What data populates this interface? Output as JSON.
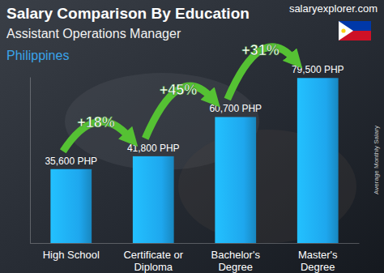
{
  "chart_data": {
    "type": "bar",
    "title": "Salary Comparison By Education",
    "subtitle": "Assistant Operations Manager",
    "location": "Philippines",
    "source": "salaryexplorer.com",
    "y_label": "Average Monthly Salary",
    "categories": [
      "High School",
      "Certificate or Diploma",
      "Bachelor's Degree",
      "Master's Degree"
    ],
    "values": [
      35600,
      41800,
      60700,
      79500
    ],
    "value_labels": [
      "35,600 PHP",
      "41,800 PHP",
      "60,700 PHP",
      "79,500 PHP"
    ],
    "annotations": [
      "+18%",
      "+45%",
      "+31%"
    ],
    "color": "#1ea7ee",
    "ylim": [
      0,
      80000
    ],
    "data_labels": true,
    "tick_labels": "x"
  }
}
